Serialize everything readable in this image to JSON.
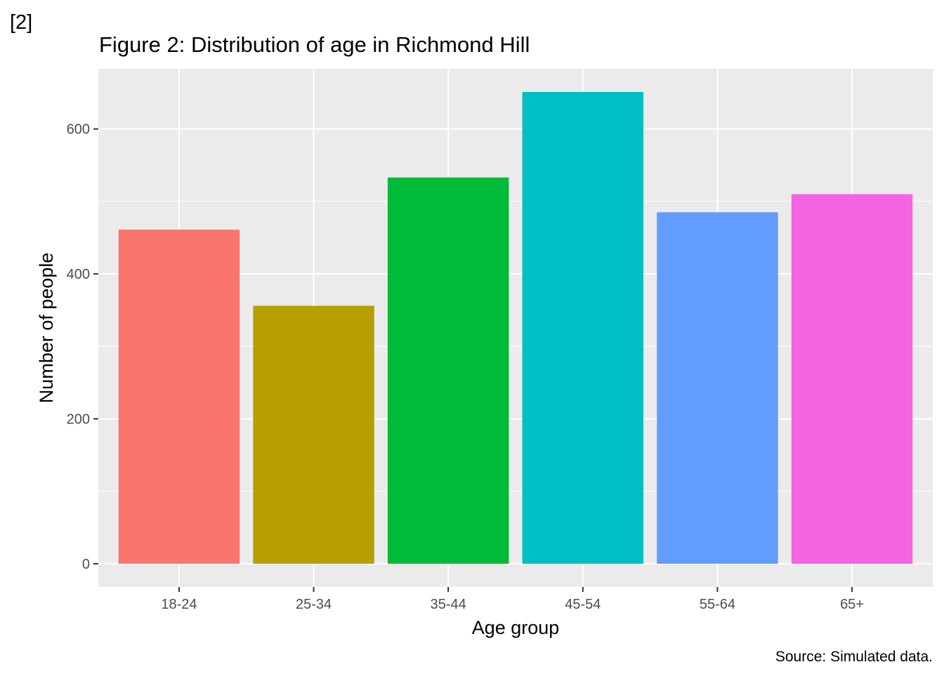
{
  "output_label": "[2]",
  "chart_data": {
    "type": "bar",
    "title": "Figure 2: Distribution of age in Richmond Hill",
    "xlabel": "Age group",
    "ylabel": "Number of people",
    "caption": "Source: Simulated data.",
    "categories": [
      "18-24",
      "25-34",
      "35-44",
      "45-54",
      "55-64",
      "65+"
    ],
    "values": [
      461,
      356,
      533,
      651,
      485,
      510
    ],
    "colors": [
      "#F8766D",
      "#B79F00",
      "#00BA38",
      "#00BFC4",
      "#619CFF",
      "#F564E3"
    ],
    "y_ticks": [
      0,
      200,
      400,
      600
    ],
    "y_tick_labels": [
      "0",
      "200",
      "400",
      "600"
    ],
    "ylim": [
      -32,
      683
    ],
    "grid": true,
    "legend": "none",
    "panel_background": "#EBEBEB",
    "gridline_color": "#FFFFFF"
  }
}
